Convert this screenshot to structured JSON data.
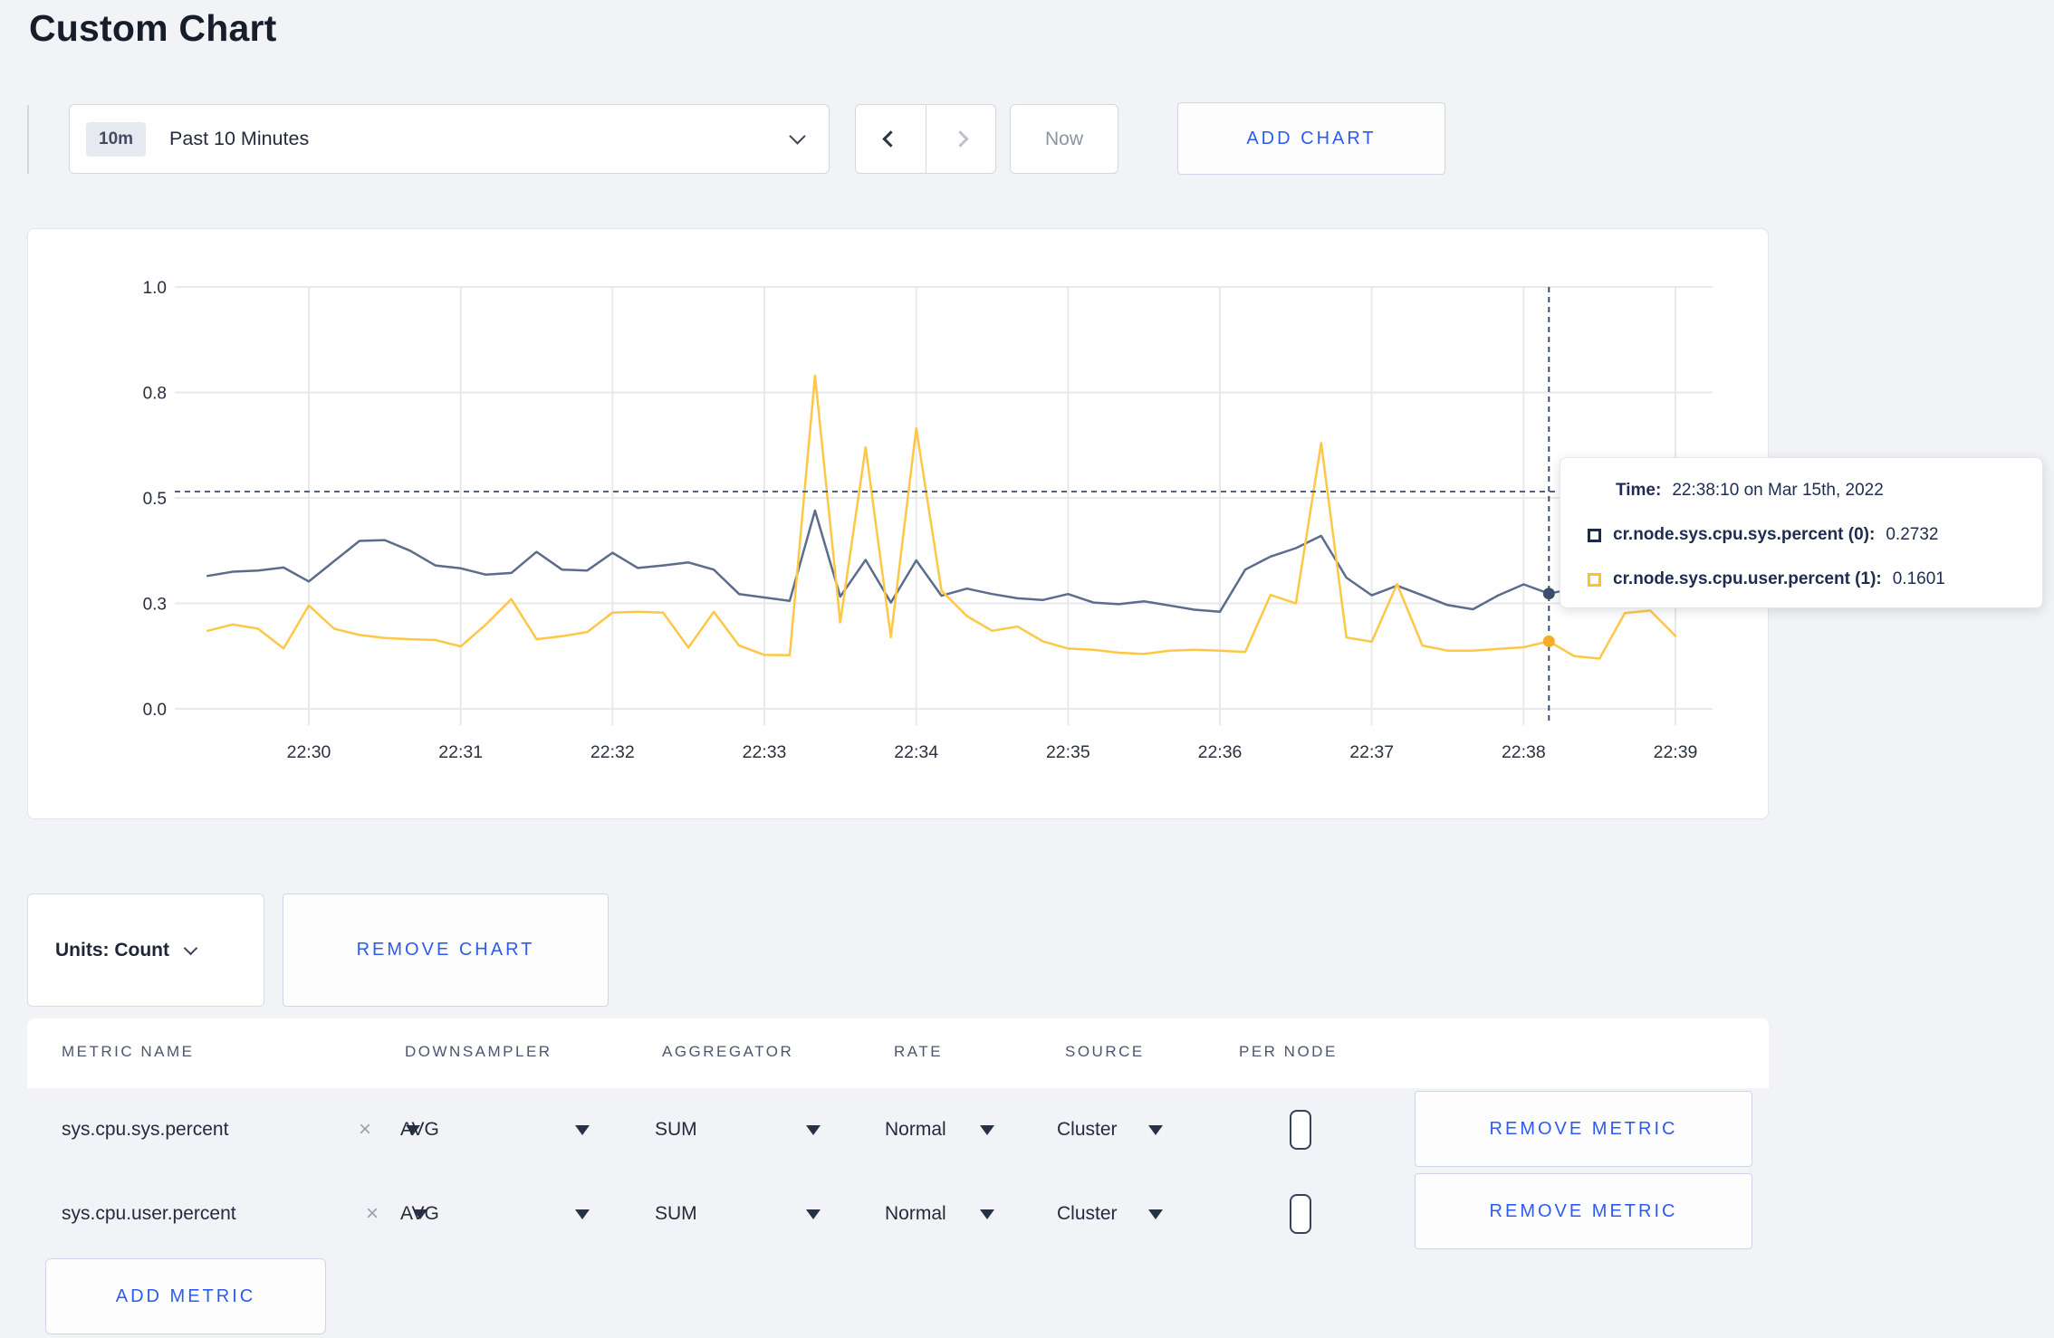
{
  "page": {
    "title": "Custom Chart",
    "accent_blue": "#2d5bef",
    "background": "#f2f3f6"
  },
  "toolbar": {
    "range_badge": "10m",
    "range_label": "Past 10 Minutes",
    "prev_icon": "chevron-left",
    "next_icon": "chevron-right",
    "now_label": "Now",
    "add_chart_label": "ADD CHART"
  },
  "chart_data": {
    "type": "line",
    "title": "",
    "xlabel": "",
    "ylabel": "",
    "ylim": [
      0,
      1
    ],
    "grid": true,
    "legend_position": "tooltip-overlay",
    "x_tick_labels": [
      "22:30",
      "22:31",
      "22:32",
      "22:33",
      "22:34",
      "22:35",
      "22:36",
      "22:37",
      "22:38",
      "22:39"
    ],
    "y_tick_labels": [
      "1.0",
      "0.8",
      "0.5",
      "0.3",
      "0.0"
    ],
    "y_tick_values": [
      1.0,
      0.75,
      0.5,
      0.25,
      0.0
    ],
    "x_start": "22:29:20",
    "x_step_seconds": 10,
    "series": [
      {
        "name": "cr.node.sys.cpu.sys.percent (0)",
        "color": "#5c6c8c",
        "values": [
          0.315,
          0.325,
          0.328,
          0.335,
          0.302,
          0.35,
          0.398,
          0.4,
          0.375,
          0.34,
          0.333,
          0.318,
          0.322,
          0.372,
          0.33,
          0.328,
          0.37,
          0.334,
          0.34,
          0.347,
          0.33,
          0.272,
          0.264,
          0.256,
          0.47,
          0.266,
          0.353,
          0.252,
          0.352,
          0.268,
          0.285,
          0.272,
          0.262,
          0.258,
          0.272,
          0.252,
          0.248,
          0.255,
          0.245,
          0.235,
          0.23,
          0.33,
          0.361,
          0.381,
          0.41,
          0.311,
          0.269,
          0.292,
          0.269,
          0.246,
          0.236,
          0.269,
          0.295,
          0.2732,
          0.285,
          0.28,
          0.292,
          0.298,
          0.305
        ]
      },
      {
        "name": "cr.node.sys.cpu.user.percent (1)",
        "color": "#ffc745",
        "values": [
          0.185,
          0.2,
          0.19,
          0.143,
          0.245,
          0.19,
          0.175,
          0.168,
          0.165,
          0.163,
          0.148,
          0.2,
          0.26,
          0.165,
          0.172,
          0.182,
          0.228,
          0.23,
          0.228,
          0.145,
          0.23,
          0.15,
          0.128,
          0.127,
          0.79,
          0.205,
          0.62,
          0.17,
          0.665,
          0.28,
          0.22,
          0.185,
          0.195,
          0.16,
          0.143,
          0.14,
          0.133,
          0.13,
          0.138,
          0.14,
          0.138,
          0.135,
          0.27,
          0.25,
          0.63,
          0.169,
          0.159,
          0.296,
          0.15,
          0.138,
          0.138,
          0.142,
          0.146,
          0.1601,
          0.125,
          0.119,
          0.227,
          0.233,
          0.173
        ]
      }
    ],
    "crosshair": {
      "time": "22:38:10",
      "index": 53,
      "hover_y_value": 0.515,
      "markers": [
        {
          "series": 0,
          "value": 0.2732,
          "color": "#3d4d6c"
        },
        {
          "series": 1,
          "value": 0.1601,
          "color": "#f4ad25"
        }
      ]
    }
  },
  "tooltip": {
    "time_label": "Time:",
    "time_value": "22:38:10 on Mar 15th, 2022",
    "rows": [
      {
        "label": "cr.node.sys.cpu.sys.percent (0):",
        "value": "0.2732",
        "color": "#1c2b4e"
      },
      {
        "label": "cr.node.sys.cpu.user.percent (1):",
        "value": "0.1601",
        "color": "#ffc12e"
      }
    ]
  },
  "chart_controls": {
    "units_label": "Units: Count",
    "remove_chart_label": "REMOVE CHART"
  },
  "metrics_table": {
    "headers": [
      "METRIC NAME",
      "DOWNSAMPLER",
      "AGGREGATOR",
      "RATE",
      "SOURCE",
      "PER NODE"
    ],
    "rows": [
      {
        "metric_name": "sys.cpu.sys.percent",
        "downsampler": "AVG",
        "aggregator": "SUM",
        "rate": "Normal",
        "source": "Cluster",
        "per_node_checked": false,
        "remove_label": "REMOVE METRIC"
      },
      {
        "metric_name": "sys.cpu.user.percent",
        "downsampler": "AVG",
        "aggregator": "SUM",
        "rate": "Normal",
        "source": "Cluster",
        "per_node_checked": false,
        "remove_label": "REMOVE METRIC"
      }
    ],
    "add_metric_label": "ADD METRIC"
  }
}
